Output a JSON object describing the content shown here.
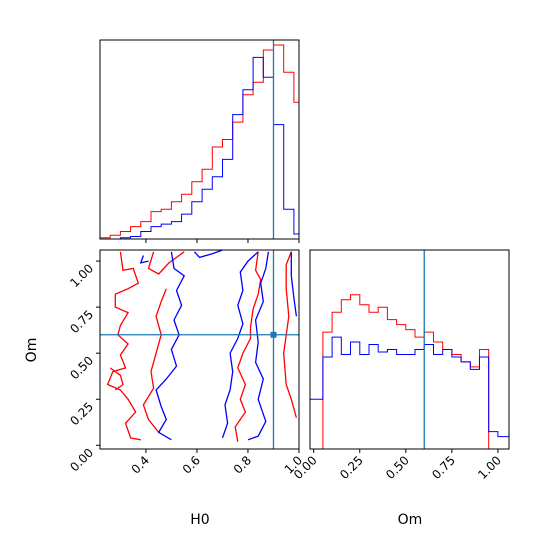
{
  "chart_data": {
    "type": "corner",
    "parameters": [
      "H0",
      "Om"
    ],
    "truth": {
      "H0": 0.9,
      "Om": 0.6
    },
    "colors": {
      "red": "#ff0000",
      "blue": "#0000ff",
      "truth": "#1f77b4"
    },
    "H0_hist": {
      "xlim": [
        0.22,
        1.0
      ],
      "edges": [
        0.22,
        0.26,
        0.3,
        0.34,
        0.38,
        0.42,
        0.46,
        0.5,
        0.54,
        0.58,
        0.62,
        0.66,
        0.7,
        0.74,
        0.78,
        0.82,
        0.86,
        0.9,
        0.94,
        0.98,
        1.0
      ],
      "red": [
        0.005,
        0.015,
        0.03,
        0.05,
        0.07,
        0.11,
        0.12,
        0.15,
        0.18,
        0.23,
        0.28,
        0.37,
        0.4,
        0.47,
        0.58,
        0.63,
        0.76,
        0.78,
        0.67,
        0.55
      ],
      "blue": [
        0.0,
        0.0,
        0.005,
        0.01,
        0.03,
        0.05,
        0.06,
        0.07,
        0.1,
        0.15,
        0.2,
        0.25,
        0.32,
        0.5,
        0.6,
        0.73,
        0.65,
        0.46,
        0.12,
        0.02
      ],
      "ticks": [
        0.4,
        0.6,
        0.8,
        1.0
      ]
    },
    "Om_hist": {
      "xlim": [
        -0.02,
        1.06
      ],
      "edges": [
        -0.02,
        0.0,
        0.05,
        0.1,
        0.15,
        0.2,
        0.25,
        0.3,
        0.35,
        0.4,
        0.45,
        0.5,
        0.55,
        0.6,
        0.65,
        0.7,
        0.75,
        0.8,
        0.85,
        0.9,
        0.95,
        1.0,
        1.06
      ],
      "red": [
        0.0,
        0.0,
        0.47,
        0.55,
        0.6,
        0.62,
        0.58,
        0.55,
        0.57,
        0.52,
        0.5,
        0.48,
        0.45,
        0.47,
        0.43,
        0.4,
        0.38,
        0.35,
        0.33,
        0.4,
        0.0,
        0.0
      ],
      "blue": [
        0.2,
        0.2,
        0.37,
        0.45,
        0.38,
        0.43,
        0.38,
        0.42,
        0.39,
        0.4,
        0.38,
        0.38,
        0.4,
        0.42,
        0.38,
        0.4,
        0.37,
        0.35,
        0.32,
        0.37,
        0.07,
        0.05
      ],
      "ticks": [
        0.0,
        0.25,
        0.5,
        0.75,
        1.0
      ],
      "tick_labels": [
        "0.00",
        "0.25",
        "0.50",
        "0.75",
        "1.00"
      ]
    },
    "joint": {
      "xlim": [
        0.22,
        1.0
      ],
      "ylim": [
        -0.02,
        1.06
      ],
      "xticks": [
        0.4,
        0.6,
        0.8,
        1.0
      ],
      "xtick_labels": [
        "0.4",
        "0.6",
        "0.8",
        "1.0"
      ],
      "yticks": [
        0.0,
        0.25,
        0.5,
        0.75,
        1.0
      ],
      "ytick_labels": [
        "0.00",
        "0.25",
        "0.50",
        "0.75",
        "1.00"
      ],
      "xlabel": "H0",
      "ylabel": "Om",
      "red_contours": [
        [
          [
            0.3,
            1.05
          ],
          [
            0.31,
            0.95
          ],
          [
            0.35,
            0.96
          ],
          [
            0.37,
            0.88
          ],
          [
            0.33,
            0.85
          ],
          [
            0.28,
            0.82
          ],
          [
            0.28,
            0.75
          ],
          [
            0.33,
            0.72
          ],
          [
            0.3,
            0.65
          ],
          [
            0.29,
            0.6
          ],
          [
            0.33,
            0.55
          ],
          [
            0.3,
            0.49
          ],
          [
            0.32,
            0.42
          ],
          [
            0.27,
            0.4
          ],
          [
            0.25,
            0.33
          ],
          [
            0.3,
            0.3
          ],
          [
            0.33,
            0.25
          ],
          [
            0.36,
            0.18
          ],
          [
            0.32,
            0.12
          ],
          [
            0.34,
            0.04
          ],
          [
            0.38,
            0.03
          ]
        ],
        [
          [
            0.43,
            1.05
          ],
          [
            0.41,
            0.96
          ],
          [
            0.45,
            0.93
          ],
          [
            0.49,
            0.99
          ],
          [
            0.55,
            1.05
          ]
        ],
        [
          [
            0.48,
            0.85
          ],
          [
            0.46,
            0.78
          ],
          [
            0.44,
            0.7
          ],
          [
            0.46,
            0.6
          ],
          [
            0.44,
            0.5
          ],
          [
            0.42,
            0.4
          ],
          [
            0.43,
            0.31
          ],
          [
            0.39,
            0.22
          ],
          [
            0.41,
            0.14
          ],
          [
            0.45,
            0.07
          ]
        ],
        [
          [
            0.26,
            0.42
          ],
          [
            0.3,
            0.38
          ],
          [
            0.31,
            0.33
          ],
          [
            0.28,
            0.3
          ]
        ],
        [
          [
            0.84,
            1.05
          ],
          [
            0.83,
            0.95
          ],
          [
            0.85,
            0.9
          ],
          [
            0.84,
            0.82
          ],
          [
            0.82,
            0.74
          ],
          [
            0.81,
            0.64
          ],
          [
            0.81,
            0.58
          ],
          [
            0.78,
            0.5
          ],
          [
            0.76,
            0.42
          ],
          [
            0.79,
            0.33
          ],
          [
            0.77,
            0.25
          ],
          [
            0.79,
            0.18
          ],
          [
            0.75,
            0.1
          ],
          [
            0.76,
            0.02
          ]
        ],
        [
          [
            0.97,
            1.05
          ],
          [
            0.95,
            0.98
          ],
          [
            0.95,
            0.85
          ],
          [
            0.96,
            0.7
          ],
          [
            0.94,
            0.5
          ],
          [
            0.95,
            0.33
          ],
          [
            0.97,
            0.25
          ],
          [
            0.99,
            0.15
          ]
        ]
      ],
      "blue_contours": [
        [
          [
            0.5,
            1.05
          ],
          [
            0.51,
            0.96
          ],
          [
            0.55,
            0.92
          ],
          [
            0.52,
            0.84
          ],
          [
            0.54,
            0.76
          ],
          [
            0.51,
            0.68
          ],
          [
            0.53,
            0.6
          ],
          [
            0.5,
            0.52
          ],
          [
            0.52,
            0.43
          ],
          [
            0.48,
            0.36
          ],
          [
            0.44,
            0.3
          ],
          [
            0.46,
            0.21
          ],
          [
            0.48,
            0.14
          ],
          [
            0.45,
            0.07
          ],
          [
            0.5,
            0.03
          ]
        ],
        [
          [
            0.39,
            1.03
          ],
          [
            0.38,
            0.99
          ],
          [
            0.41,
            1.0
          ]
        ],
        [
          [
            0.59,
            1.05
          ],
          [
            0.61,
            1.02
          ],
          [
            0.66,
            1.04
          ],
          [
            0.7,
            1.06
          ]
        ],
        [
          [
            0.88,
            1.05
          ],
          [
            0.87,
            0.96
          ],
          [
            0.85,
            0.88
          ],
          [
            0.86,
            0.78
          ],
          [
            0.83,
            0.68
          ],
          [
            0.84,
            0.56
          ],
          [
            0.83,
            0.45
          ],
          [
            0.86,
            0.36
          ],
          [
            0.84,
            0.25
          ],
          [
            0.87,
            0.13
          ],
          [
            0.84,
            0.05
          ],
          [
            0.8,
            0.03
          ]
        ],
        [
          [
            0.7,
            0.04
          ],
          [
            0.72,
            0.12
          ],
          [
            0.71,
            0.22
          ],
          [
            0.73,
            0.3
          ],
          [
            0.74,
            0.4
          ],
          [
            0.73,
            0.5
          ],
          [
            0.76,
            0.58
          ],
          [
            0.78,
            0.66
          ],
          [
            0.76,
            0.76
          ],
          [
            0.78,
            0.84
          ],
          [
            0.77,
            0.94
          ],
          [
            0.8,
            1.0
          ],
          [
            0.84,
            1.05
          ]
        ],
        [
          [
            0.97,
            1.05
          ],
          [
            0.97,
            0.92
          ],
          [
            0.98,
            0.8
          ],
          [
            0.99,
            0.7
          ]
        ]
      ]
    }
  }
}
